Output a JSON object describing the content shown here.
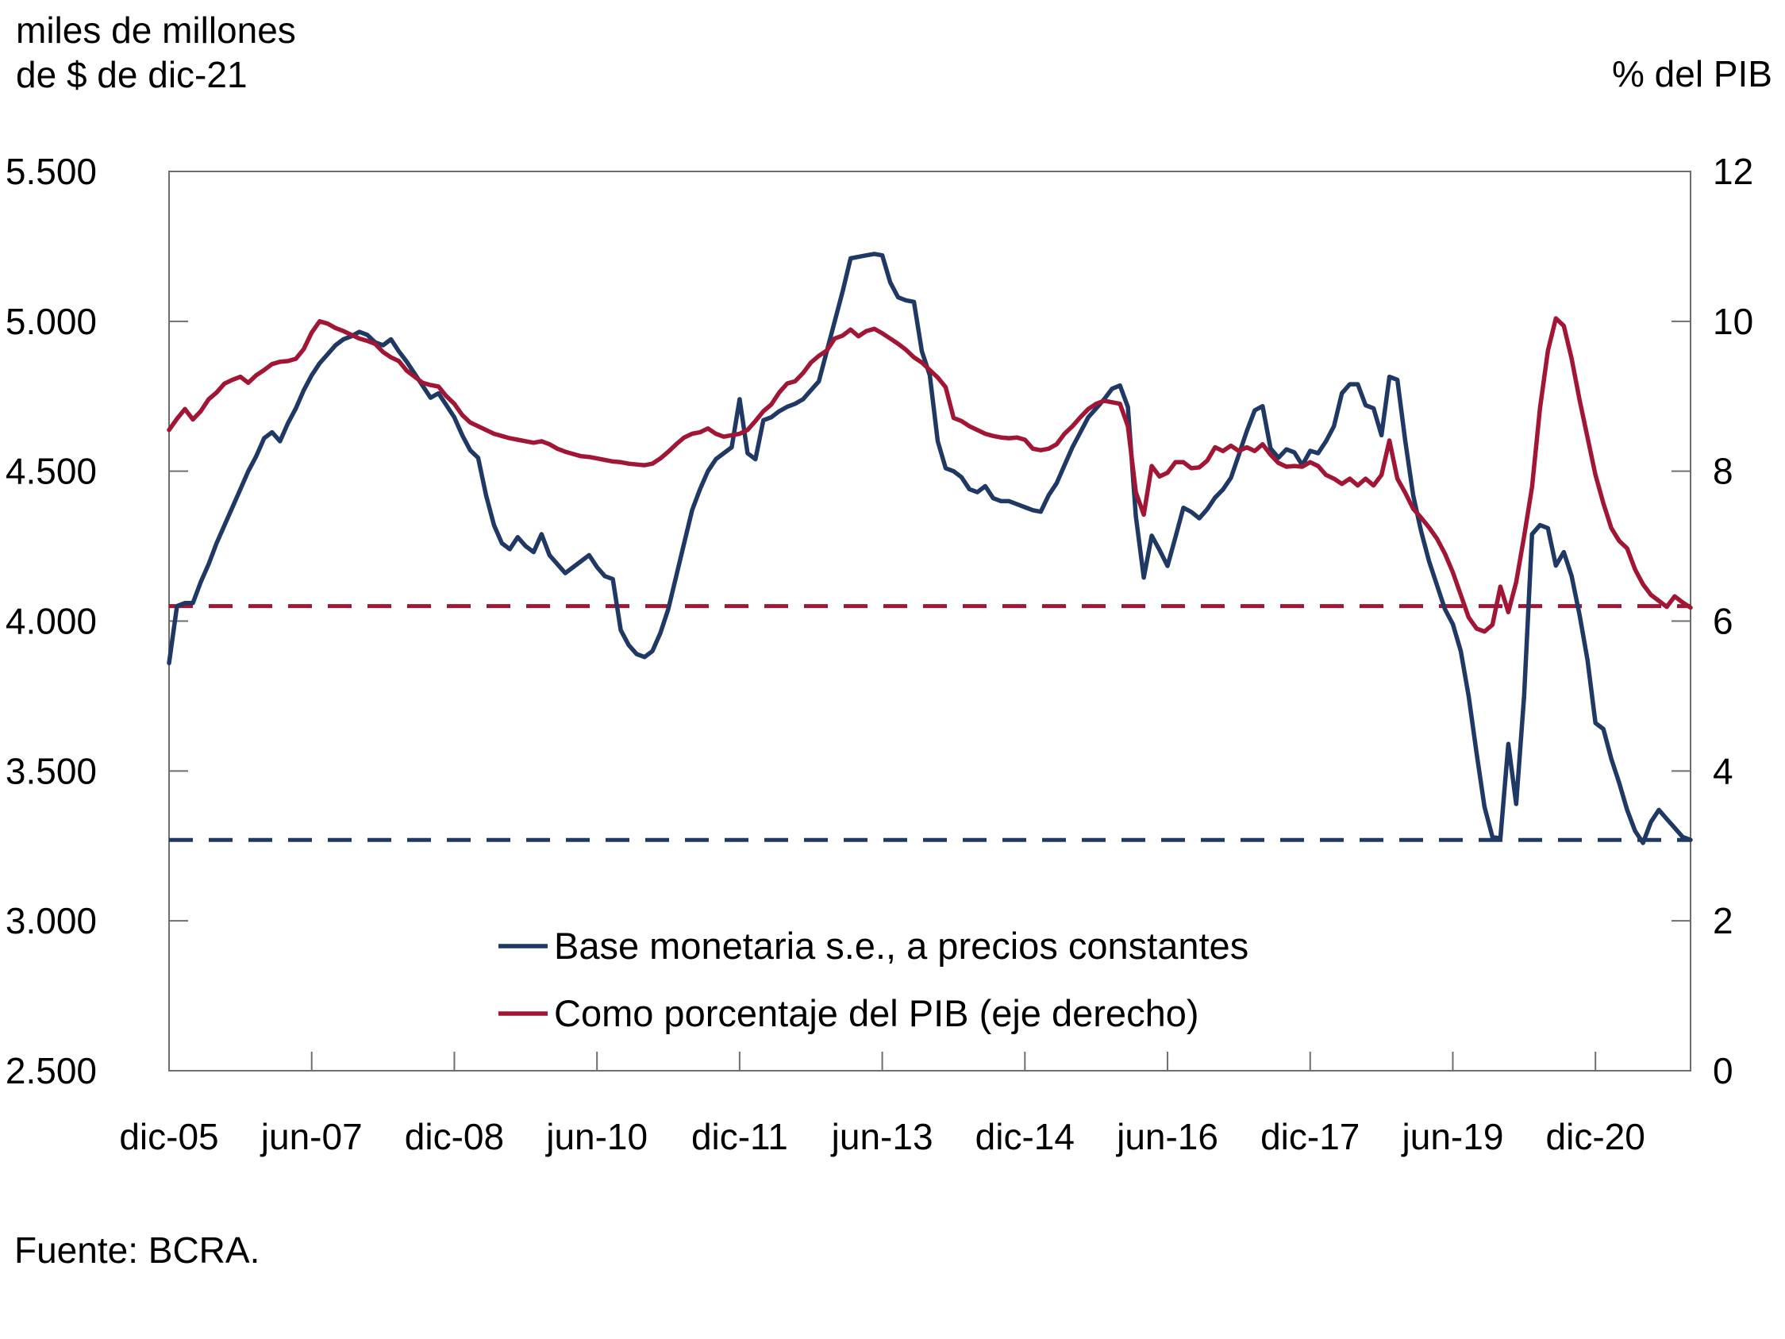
{
  "header": {
    "left_axis_title_line1": "miles de millones",
    "left_axis_title_line2": "de $ de dic-21",
    "right_axis_title": "% del PIB"
  },
  "footer": {
    "source": "Fuente: BCRA."
  },
  "chart_data": {
    "type": "line",
    "title": "",
    "x_description": "monthly observations from dic-2005 to dic-2021",
    "x_tick_labels": [
      "dic-05",
      "jun-07",
      "dic-08",
      "jun-10",
      "dic-11",
      "jun-13",
      "dic-14",
      "jun-16",
      "dic-17",
      "jun-19",
      "dic-20"
    ],
    "x_tick_month_index": [
      0,
      18,
      36,
      54,
      72,
      90,
      108,
      126,
      144,
      162,
      180
    ],
    "left_axis": {
      "label": "miles de millones de $ de dic-21",
      "tick_labels": [
        "5.500",
        "5.000",
        "4.500",
        "4.000",
        "3.500",
        "3.000",
        "2.500"
      ],
      "tick_values": [
        5500,
        5000,
        4500,
        4000,
        3500,
        3000,
        2500
      ],
      "range": [
        2500,
        5500
      ]
    },
    "right_axis": {
      "label": "% del PIB",
      "tick_labels": [
        "12",
        "10",
        "8",
        "6",
        "4",
        "2",
        "0"
      ],
      "tick_values": [
        12,
        10,
        8,
        6,
        4,
        2,
        0
      ],
      "range": [
        0,
        12
      ]
    },
    "grid": false,
    "legend_position": "inside-bottom-center",
    "series": [
      {
        "name": "Base monetaria s.e., a precios constantes",
        "axis": "left",
        "color": "#1f3864",
        "values": [
          3860,
          4050,
          4060,
          4060,
          4130,
          4190,
          4260,
          4320,
          4380,
          4440,
          4500,
          4550,
          4610,
          4630,
          4600,
          4660,
          4710,
          4770,
          4820,
          4860,
          4890,
          4920,
          4940,
          4950,
          4965,
          4955,
          4930,
          4920,
          4940,
          4900,
          4865,
          4825,
          4785,
          4745,
          4760,
          4720,
          4680,
          4620,
          4570,
          4545,
          4420,
          4320,
          4260,
          4240,
          4280,
          4250,
          4230,
          4290,
          4220,
          4190,
          4160,
          4180,
          4200,
          4220,
          4180,
          4150,
          4140,
          3970,
          3920,
          3890,
          3880,
          3900,
          3960,
          4040,
          4150,
          4260,
          4370,
          4440,
          4500,
          4540,
          4560,
          4580,
          4740,
          4560,
          4540,
          4670,
          4680,
          4700,
          4715,
          4725,
          4740,
          4770,
          4800,
          4900,
          5000,
          5100,
          5210,
          5215,
          5220,
          5225,
          5220,
          5130,
          5080,
          5070,
          5065,
          4900,
          4820,
          4600,
          4510,
          4500,
          4480,
          4440,
          4430,
          4450,
          4410,
          4400,
          4400,
          4390,
          4380,
          4370,
          4365,
          4420,
          4460,
          4520,
          4580,
          4630,
          4680,
          4710,
          4740,
          4775,
          4786,
          4714,
          4350,
          4145,
          4285,
          4237,
          4184,
          4280,
          4378,
          4364,
          4343,
          4373,
          4412,
          4439,
          4478,
          4555,
          4634,
          4703,
          4717,
          4576,
          4545,
          4573,
          4563,
          4520,
          4568,
          4560,
          4600,
          4650,
          4760,
          4790,
          4790,
          4720,
          4710,
          4620,
          4815,
          4805,
          4600,
          4420,
          4300,
          4200,
          4120,
          4040,
          3990,
          3900,
          3750,
          3560,
          3380,
          3280,
          3275,
          3590,
          3390,
          3750,
          4290,
          4320,
          4310,
          4185,
          4230,
          4150,
          4020,
          3870,
          3660,
          3640,
          3540,
          3460,
          3370,
          3300,
          3260,
          3330,
          3370,
          3340,
          3310,
          3280,
          3270
        ]
      },
      {
        "name": "Como porcentaje del PIB (eje derecho)",
        "axis": "right",
        "color": "#a21635",
        "values": [
          8.55,
          8.7,
          8.83,
          8.69,
          8.8,
          8.96,
          9.05,
          9.17,
          9.22,
          9.26,
          9.18,
          9.28,
          9.35,
          9.43,
          9.46,
          9.47,
          9.5,
          9.63,
          9.85,
          10.0,
          9.97,
          9.91,
          9.87,
          9.82,
          9.77,
          9.74,
          9.7,
          9.59,
          9.52,
          9.47,
          9.34,
          9.26,
          9.18,
          9.15,
          9.13,
          9.0,
          8.9,
          8.75,
          8.65,
          8.6,
          8.55,
          8.5,
          8.47,
          8.44,
          8.42,
          8.4,
          8.38,
          8.4,
          8.36,
          8.3,
          8.26,
          8.23,
          8.2,
          8.19,
          8.17,
          8.15,
          8.13,
          8.12,
          8.1,
          8.09,
          8.08,
          8.1,
          8.17,
          8.26,
          8.36,
          8.45,
          8.5,
          8.52,
          8.57,
          8.5,
          8.46,
          8.48,
          8.5,
          8.55,
          8.67,
          8.8,
          8.89,
          9.05,
          9.17,
          9.2,
          9.31,
          9.45,
          9.54,
          9.61,
          9.77,
          9.81,
          9.89,
          9.8,
          9.87,
          9.9,
          9.84,
          9.77,
          9.7,
          9.62,
          9.52,
          9.45,
          9.35,
          9.25,
          9.12,
          8.71,
          8.67,
          8.6,
          8.55,
          8.5,
          8.47,
          8.45,
          8.44,
          8.45,
          8.42,
          8.3,
          8.28,
          8.3,
          8.36,
          8.5,
          8.6,
          8.72,
          8.83,
          8.9,
          8.94,
          8.92,
          8.9,
          8.6,
          7.72,
          7.42,
          8.07,
          7.93,
          7.98,
          8.12,
          8.12,
          8.04,
          8.05,
          8.14,
          8.32,
          8.27,
          8.34,
          8.27,
          8.32,
          8.27,
          8.36,
          8.22,
          8.11,
          8.06,
          8.07,
          8.06,
          8.12,
          8.07,
          7.95,
          7.9,
          7.83,
          7.9,
          7.81,
          7.9,
          7.81,
          7.95,
          8.41,
          7.9,
          7.71,
          7.5,
          7.38,
          7.25,
          7.1,
          6.9,
          6.65,
          6.35,
          6.05,
          5.9,
          5.86,
          5.95,
          6.46,
          6.12,
          6.52,
          7.13,
          7.79,
          8.84,
          9.61,
          10.04,
          9.94,
          9.5,
          8.95,
          8.45,
          7.95,
          7.57,
          7.24,
          7.07,
          6.97,
          6.69,
          6.49,
          6.35,
          6.27,
          6.19,
          6.33,
          6.25,
          6.18
        ]
      }
    ],
    "reference_lines": [
      {
        "name": "nivel dic-21 base monetaria",
        "axis": "left",
        "value": 3270,
        "color": "#1f3864",
        "style": "dashed"
      },
      {
        "name": "nivel dic-21 % del PIB",
        "axis": "right",
        "value": 6.2,
        "color": "#a21635",
        "style": "dashed"
      }
    ]
  }
}
